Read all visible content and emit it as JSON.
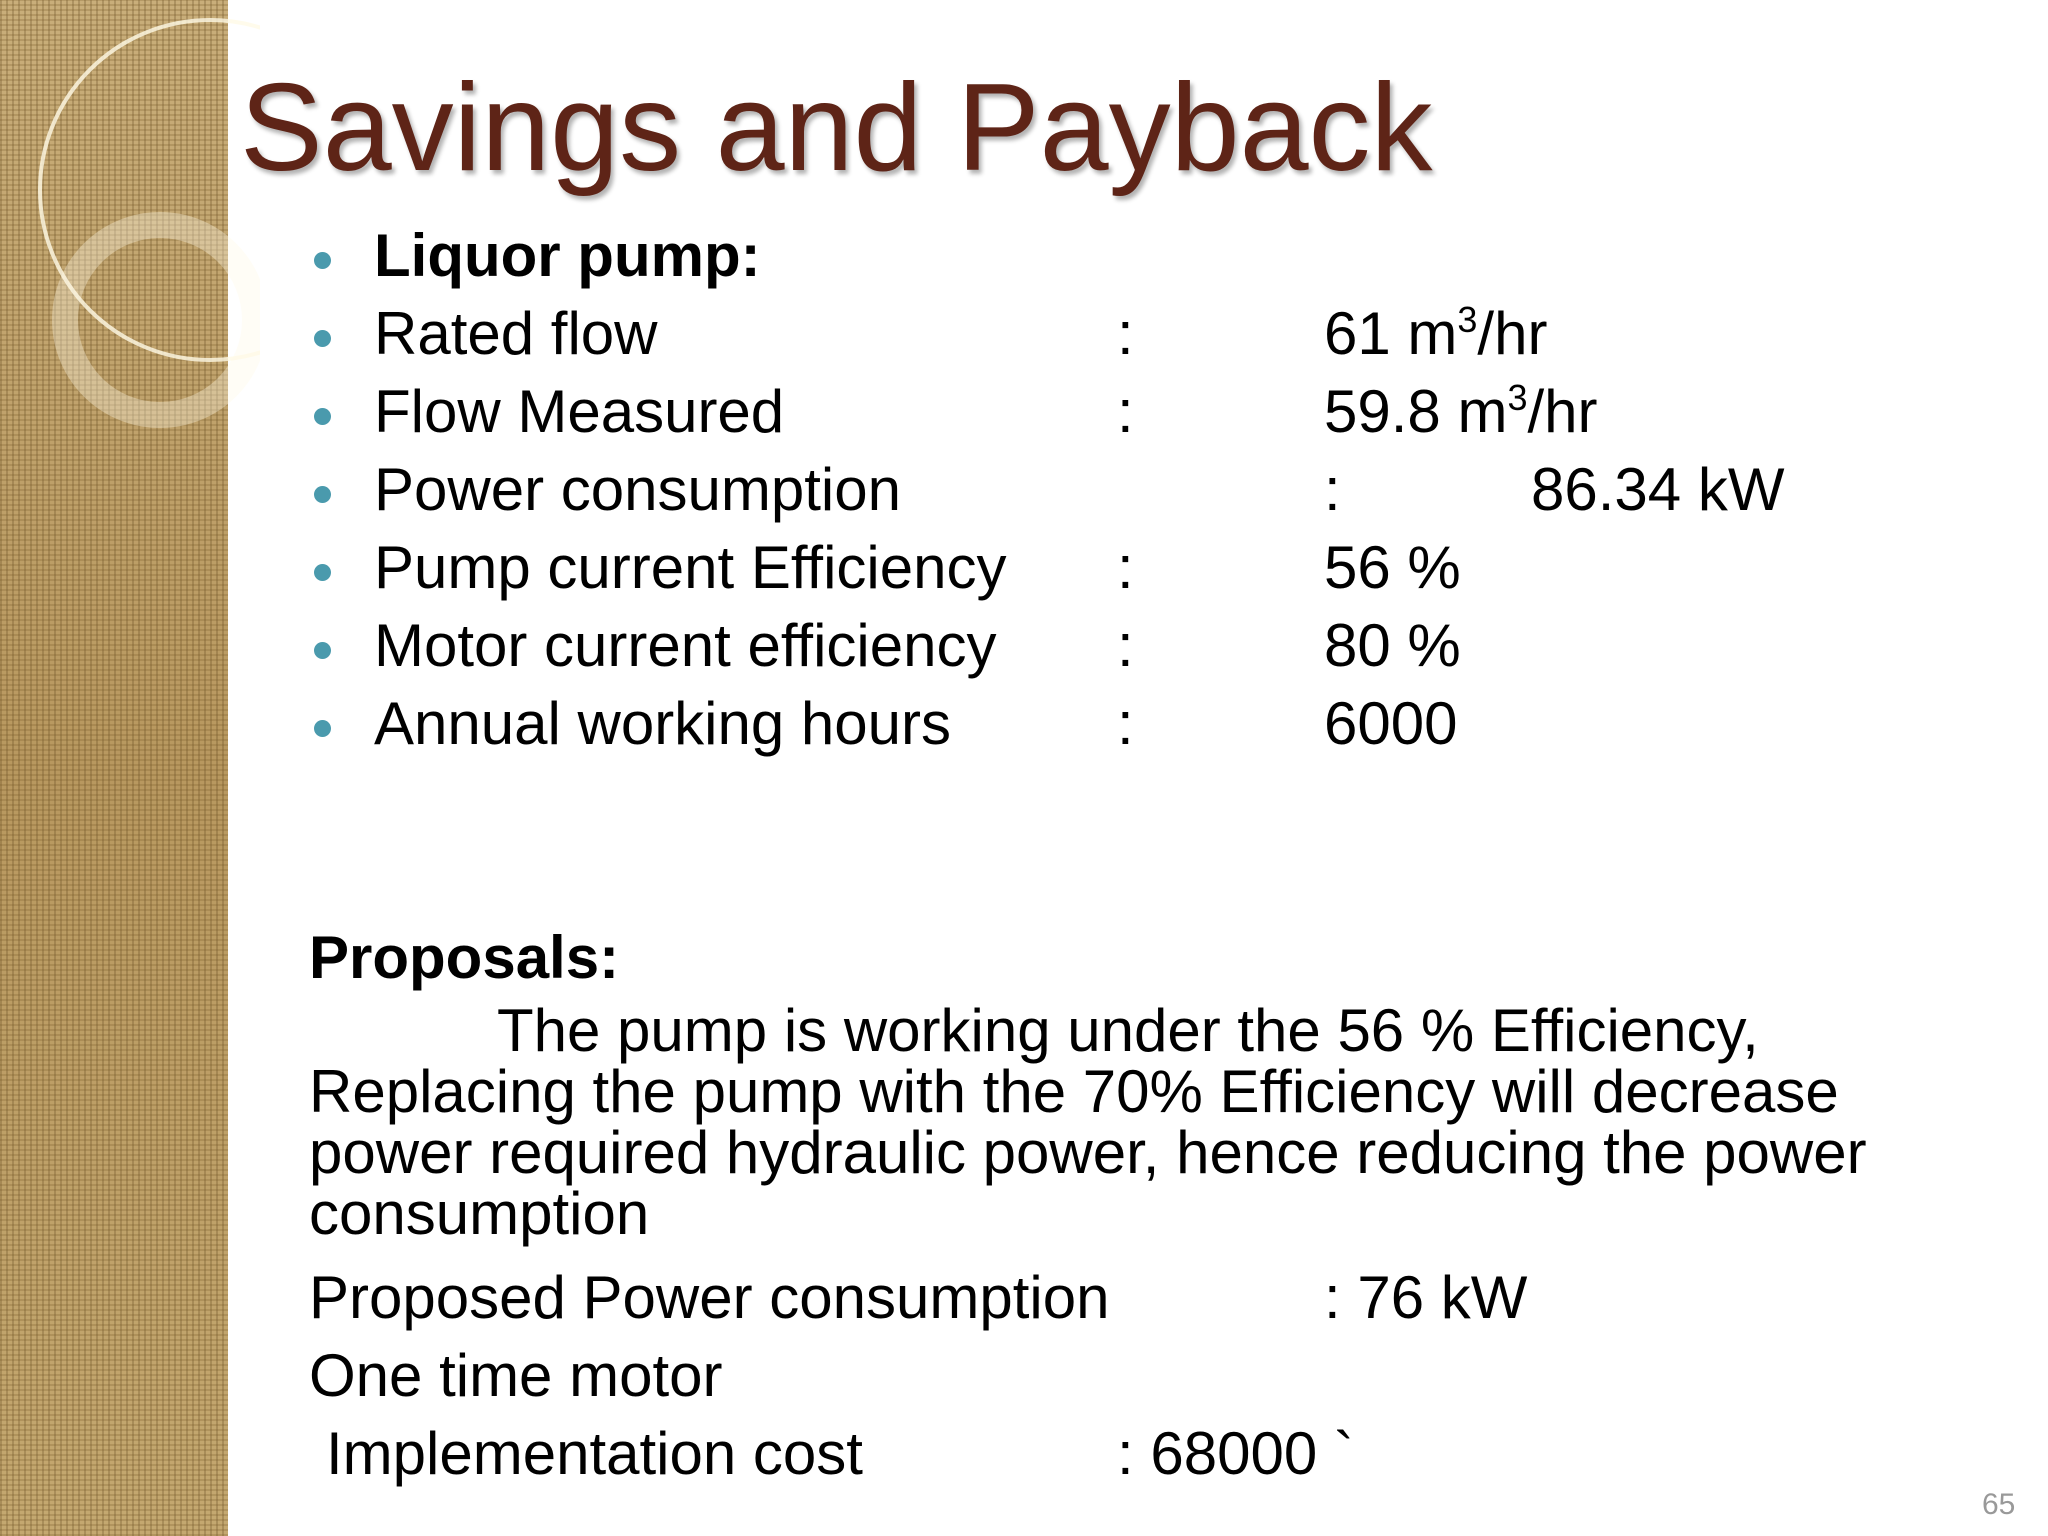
{
  "header": {
    "title": "Savings and Payback"
  },
  "bullets": [
    {
      "label": "Liquor pump:"
    },
    {
      "label": "Rated flow",
      "sep": ":",
      "value": "61 m",
      "sup": "3",
      "suffix": "/hr"
    },
    {
      "label": "Flow Measured",
      "sep": ":",
      "value": "59.8 m",
      "sup": "3",
      "suffix": "/hr"
    },
    {
      "label": "Power consumption",
      "sep": ":",
      "value": "86.34 kW"
    },
    {
      "label": "Pump current Efficiency",
      "sep": ":",
      "value": "56 %"
    },
    {
      "label": "Motor current efficiency",
      "sep": ":",
      "value": "80 %"
    },
    {
      "label": "Annual working hours",
      "sep": ":",
      "value": "6000"
    }
  ],
  "proposals": {
    "heading": "Proposals:",
    "paragraph": "The pump is working under the 56 % Efficiency, Replacing the pump with the 70% Efficiency will decrease power required hydraulic power, hence reducing the power consumption",
    "rows": [
      {
        "label": "Proposed Power consumption",
        "value": ": 76 kW"
      },
      {
        "label": "One time motor"
      },
      {
        "label": "Implementation cost",
        "value": ": 68000 `"
      }
    ]
  },
  "footer": {
    "page_number": "65"
  }
}
